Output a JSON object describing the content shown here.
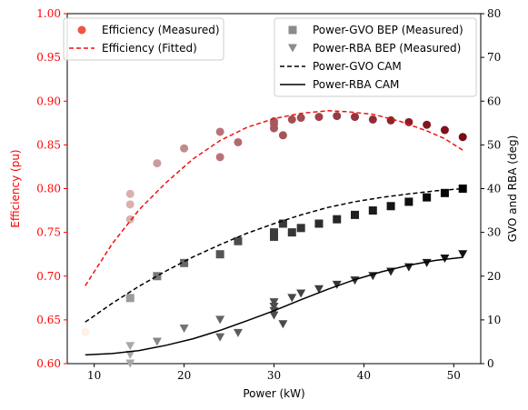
{
  "chart_data": {
    "type": "scatter",
    "xlabel": "Power (kW)",
    "ylabel_left": "Efficiency (pu)",
    "ylabel_right": "GVO and RBA (deg)",
    "xlim": [
      7,
      53
    ],
    "ylim_left": [
      0.6,
      1.0
    ],
    "ylim_right": [
      0,
      80
    ],
    "x_ticks": [
      10,
      20,
      30,
      40,
      50
    ],
    "y_ticks_left": [
      "0.60",
      "0.65",
      "0.70",
      "0.75",
      "0.80",
      "0.85",
      "0.90",
      "0.95",
      "1.00"
    ],
    "y_ticks_right": [
      0,
      10,
      20,
      30,
      40,
      50,
      60,
      70,
      80
    ],
    "grid": false,
    "left_axis_color": "#ff0000",
    "series": [
      {
        "name": "Efficiency (Measured)",
        "axis": "left",
        "kind": "scatter-circle",
        "color_low": "#fff0e8",
        "color_high": "#7a0a14",
        "legend_color": "#f0553f",
        "points": [
          [
            9,
            0.636
          ],
          [
            14,
            0.765
          ],
          [
            14,
            0.782
          ],
          [
            14,
            0.794
          ],
          [
            17,
            0.829
          ],
          [
            20,
            0.846
          ],
          [
            24,
            0.836
          ],
          [
            24,
            0.865
          ],
          [
            26,
            0.853
          ],
          [
            30,
            0.869
          ],
          [
            30,
            0.874
          ],
          [
            30,
            0.877
          ],
          [
            31,
            0.861
          ],
          [
            32,
            0.879
          ],
          [
            33,
            0.881
          ],
          [
            35,
            0.882
          ],
          [
            37,
            0.883
          ],
          [
            39,
            0.882
          ],
          [
            41,
            0.879
          ],
          [
            43,
            0.878
          ],
          [
            45,
            0.876
          ],
          [
            47,
            0.873
          ],
          [
            49,
            0.867
          ],
          [
            51,
            0.859
          ]
        ]
      },
      {
        "name": "Efficiency (Fitted)",
        "axis": "left",
        "kind": "line-dashed",
        "color": "#ee1111",
        "points": [
          [
            9,
            0.689
          ],
          [
            12,
            0.737
          ],
          [
            15,
            0.776
          ],
          [
            18,
            0.807
          ],
          [
            21,
            0.834
          ],
          [
            24,
            0.855
          ],
          [
            27,
            0.87
          ],
          [
            30,
            0.88
          ],
          [
            33,
            0.886
          ],
          [
            36,
            0.889
          ],
          [
            38,
            0.888
          ],
          [
            41,
            0.885
          ],
          [
            44,
            0.877
          ],
          [
            47,
            0.866
          ],
          [
            49,
            0.857
          ],
          [
            51,
            0.844
          ]
        ]
      },
      {
        "name": "Power-GVO BEP (Measured)",
        "axis": "right",
        "kind": "scatter-square",
        "color_low": "#9a9a9a",
        "color_high": "#000000",
        "legend_color": "#8c8c8c",
        "points": [
          [
            14,
            15
          ],
          [
            17,
            20
          ],
          [
            20,
            23
          ],
          [
            24,
            25
          ],
          [
            26,
            28
          ],
          [
            30,
            29
          ],
          [
            30,
            30
          ],
          [
            31,
            32
          ],
          [
            32,
            30
          ],
          [
            33,
            31
          ],
          [
            35,
            32
          ],
          [
            37,
            33
          ],
          [
            39,
            34
          ],
          [
            41,
            35
          ],
          [
            43,
            36
          ],
          [
            45,
            37
          ],
          [
            47,
            38
          ],
          [
            49,
            39
          ],
          [
            51,
            40
          ]
        ]
      },
      {
        "name": "Power-RBA BEP (Measured)",
        "axis": "right",
        "kind": "scatter-triangle-down",
        "color_low": "#a8a8a8",
        "color_high": "#111111",
        "legend_color": "#8c8c8c",
        "points": [
          [
            14,
            0
          ],
          [
            14,
            2
          ],
          [
            14,
            4
          ],
          [
            17,
            5
          ],
          [
            20,
            8
          ],
          [
            24,
            6
          ],
          [
            24,
            10
          ],
          [
            26,
            7
          ],
          [
            30,
            11
          ],
          [
            30,
            12
          ],
          [
            30,
            13
          ],
          [
            30,
            14
          ],
          [
            31,
            9
          ],
          [
            32,
            15
          ],
          [
            33,
            16
          ],
          [
            35,
            17
          ],
          [
            37,
            18
          ],
          [
            39,
            19
          ],
          [
            41,
            20
          ],
          [
            43,
            21
          ],
          [
            45,
            22
          ],
          [
            47,
            23
          ],
          [
            49,
            24
          ],
          [
            51,
            25
          ]
        ]
      },
      {
        "name": "Power-GVO CAM",
        "axis": "right",
        "kind": "line-dashed",
        "color": "#000000",
        "points": [
          [
            9,
            9.5
          ],
          [
            12,
            13.8
          ],
          [
            15,
            17.7
          ],
          [
            18,
            21.2
          ],
          [
            21,
            24.4
          ],
          [
            24,
            27.2
          ],
          [
            27,
            29.8
          ],
          [
            30,
            32.0
          ],
          [
            33,
            34.0
          ],
          [
            36,
            35.7
          ],
          [
            39,
            37.0
          ],
          [
            42,
            38.0
          ],
          [
            45,
            38.8
          ],
          [
            48,
            39.5
          ],
          [
            51,
            40.0
          ]
        ]
      },
      {
        "name": "Power-RBA CAM",
        "axis": "right",
        "kind": "line-solid",
        "color": "#000000",
        "points": [
          [
            9,
            2
          ],
          [
            12,
            2.3
          ],
          [
            15,
            3.0
          ],
          [
            18,
            4.2
          ],
          [
            21,
            5.7
          ],
          [
            24,
            7.6
          ],
          [
            27,
            9.8
          ],
          [
            30,
            12.1
          ],
          [
            33,
            14.6
          ],
          [
            36,
            17.0
          ],
          [
            39,
            19.2
          ],
          [
            42,
            21.0
          ],
          [
            45,
            22.5
          ],
          [
            48,
            23.6
          ],
          [
            51,
            24.3
          ]
        ]
      }
    ],
    "legend_left_placement": "top-left",
    "legend_right_placement": "top-right"
  }
}
